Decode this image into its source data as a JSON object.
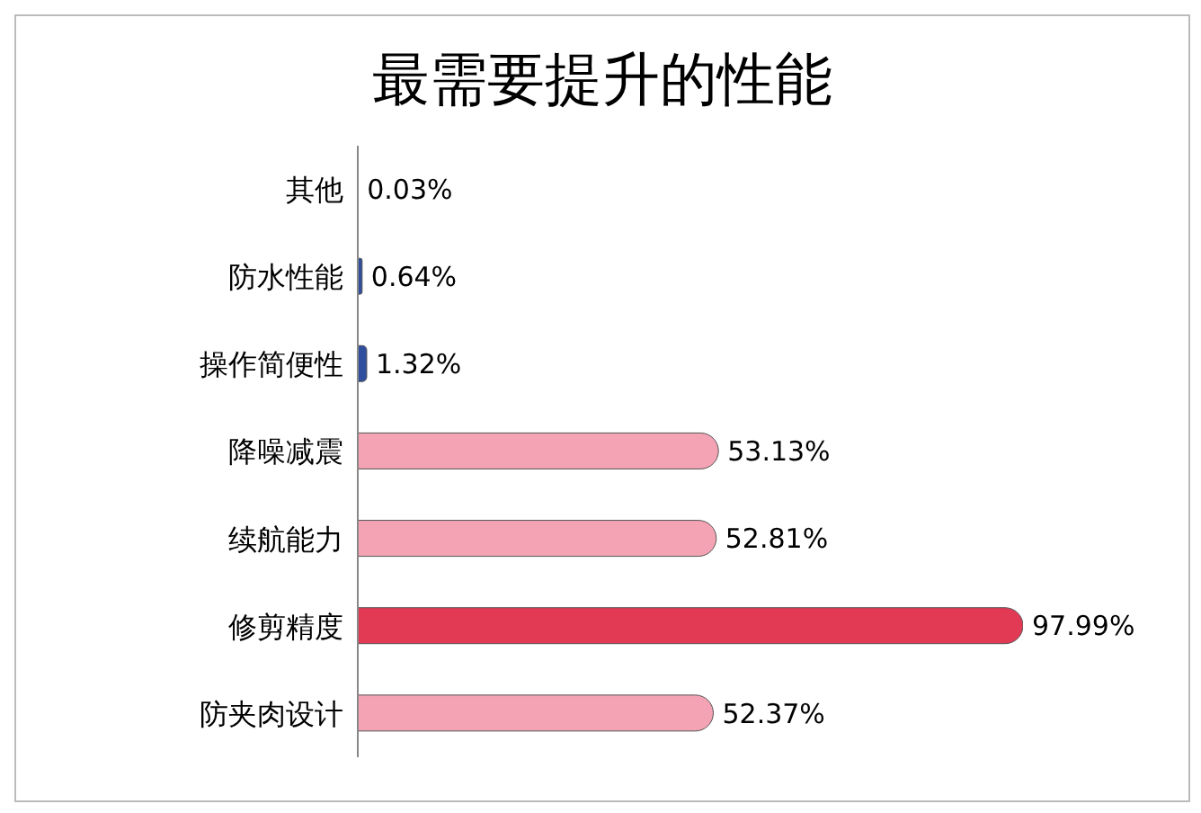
{
  "chart_data": {
    "type": "bar",
    "orientation": "horizontal",
    "title": "最需要提升的性能",
    "categories": [
      "其他",
      "防水性能",
      "操作简便性",
      "降噪减震",
      "续航能力",
      "修剪精度",
      "防夹肉设计"
    ],
    "values": [
      0.03,
      0.64,
      1.32,
      53.13,
      52.81,
      97.99,
      52.37
    ],
    "colors": [
      "#2f4f9e",
      "#2f4f9e",
      "#2f4f9e",
      "#f3a3b3",
      "#f3a3b3",
      "#e23a55",
      "#f3a3b3"
    ],
    "value_labels": [
      "0.03%",
      "0.64%",
      "1.32%",
      "53.13%",
      "52.81%",
      "97.99%",
      "52.37%"
    ],
    "tick_labels": "y"
  }
}
